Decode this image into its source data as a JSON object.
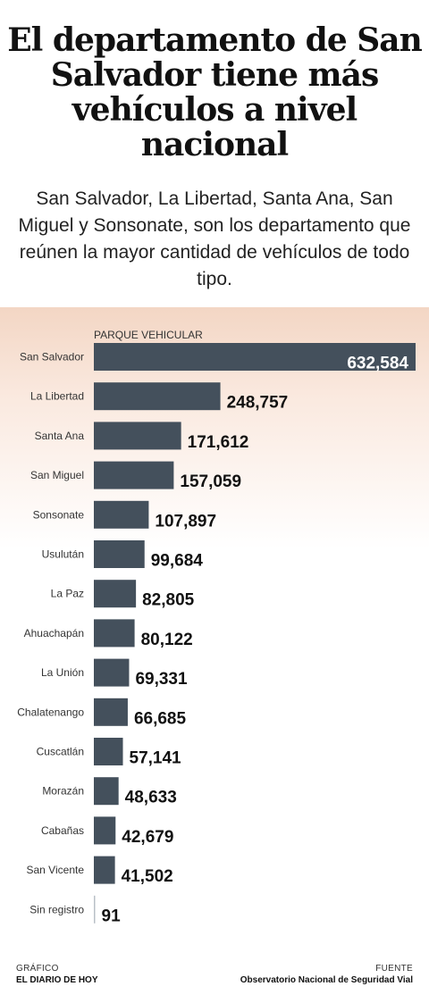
{
  "title": "El departamento de San Salvador tiene más vehículos a nivel nacional",
  "subtitle": "San Salvador, La Libertad, Santa Ana, San Miguel y Sonsonate, son los departamento que reúnen la mayor cantidad de vehículos de todo tipo.",
  "chart_data": {
    "type": "bar",
    "orientation": "horizontal",
    "series_label": "PARQUE VEHICULAR",
    "categories": [
      "San Salvador",
      "La Libertad",
      "Santa Ana",
      "San Miguel",
      "Sonsonate",
      "Usulután",
      "La Paz",
      "Ahuachapán",
      "La Unión",
      "Chalatenango",
      "Cuscatlán",
      "Morazán",
      "Cabañas",
      "San Vicente",
      "Sin registro"
    ],
    "values": [
      632584,
      248757,
      171612,
      157059,
      107897,
      99684,
      82805,
      80122,
      69331,
      66685,
      57141,
      48633,
      42679,
      41502,
      91
    ],
    "value_labels": [
      "632,584",
      "248,757",
      "171,612",
      "157,059",
      "107,897",
      "99,684",
      "82,805",
      "80,122",
      "69,331",
      "66,685",
      "57,141",
      "48,633",
      "42,679",
      "41,502",
      "91"
    ],
    "bar_color": "#44505c",
    "grid": false,
    "legend": "none"
  },
  "footer": {
    "credit_label": "GRÁFICO",
    "credit_name": "EL DIARIO DE HOY",
    "source_label": "FUENTE",
    "source_name": "Observatorio Nacional de Seguridad Vial"
  }
}
